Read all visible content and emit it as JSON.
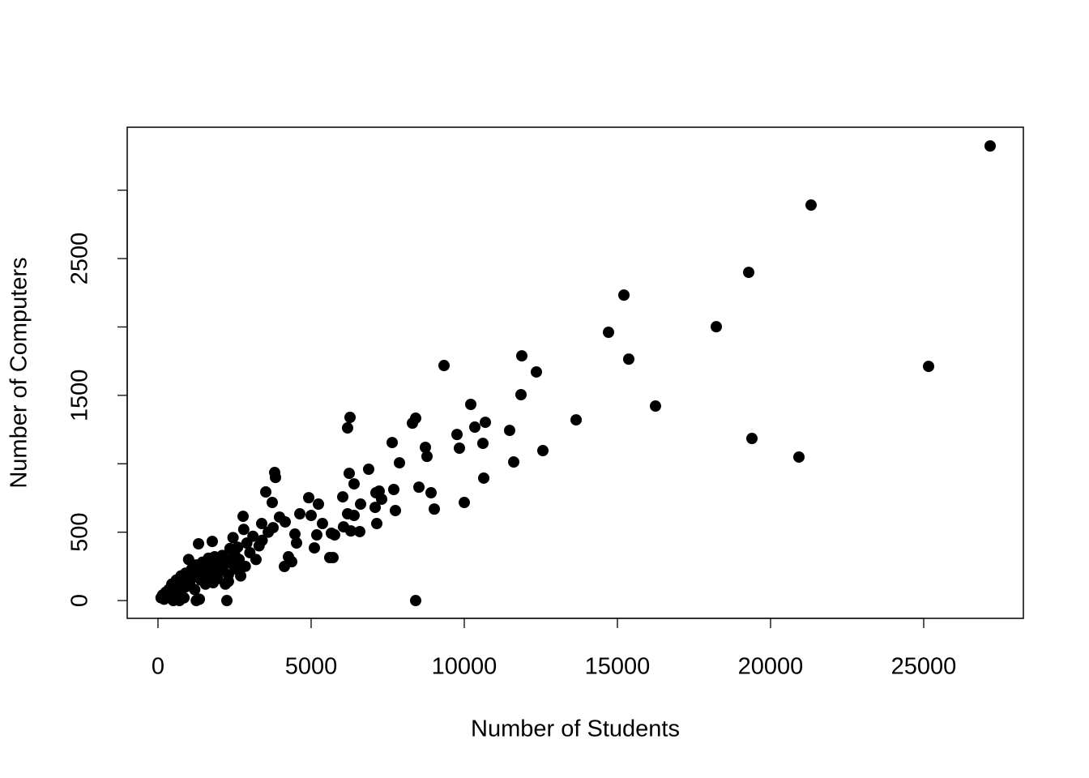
{
  "chart_data": {
    "type": "scatter",
    "x_label": "Number of Students",
    "y_label": "Number of Computers",
    "color": "#000000",
    "xlim": [
      -1005,
      28254
    ],
    "ylim": [
      -130,
      3460
    ],
    "xticks": [
      0,
      5000,
      10000,
      15000,
      20000,
      25000
    ],
    "yticks": [
      0,
      500,
      {
        "value": 1000,
        "label": null
      },
      1500,
      {
        "value": 2000,
        "label": null
      },
      2500,
      {
        "value": 3000,
        "label": null
      }
    ],
    "x": [
      27169,
      21323,
      19286,
      15212,
      14709,
      18228,
      15370,
      25159,
      16243,
      19392,
      20926,
      13651,
      9339,
      11878,
      12354,
      11852,
      10212,
      10688,
      10344,
      11481,
      10608,
      9762,
      9841,
      12566,
      11614,
      10635,
      10000,
      8413,
      8307,
      8730,
      8783,
      7884,
      7646,
      7698,
      7751,
      8519,
      8915,
      9021,
      8413,
      6270,
      6190,
      6243,
      6878,
      6402,
      7116,
      7222,
      7302,
      7090,
      7143,
      6614,
      6032,
      6190,
      6402,
      6058,
      6296,
      6587,
      3810,
      3836,
      3519,
      3730,
      3968,
      4153,
      3386,
      3757,
      4921,
      5238,
      5000,
      4630,
      5370,
      5185,
      5106,
      5661,
      5767,
      5608,
      5714,
      4259,
      4127,
      4365,
      4524,
      4471,
      2778,
      1772,
      1323,
      2249,
      100,
      150,
      200,
      250,
      300,
      350,
      400,
      450,
      500,
      550,
      600,
      650,
      700,
      750,
      800,
      850,
      900,
      950,
      1000,
      1050,
      1100,
      1150,
      1200,
      1250,
      1300,
      1350,
      1400,
      1450,
      1500,
      1550,
      1600,
      1650,
      1700,
      1750,
      1800,
      1850,
      1900,
      1950,
      2000,
      2050,
      2100,
      2150,
      2200,
      2250,
      2300,
      2350,
      2400,
      2450,
      2500,
      2550,
      2600,
      2650,
      2700,
      2800,
      2850,
      2900,
      3000,
      3100,
      3200,
      3300,
      3400,
      3600,
      1250,
      700,
      500,
      900,
      1800,
      2300,
      1600
    ],
    "y": [
      3323,
      2891,
      2399,
      2233,
      1961,
      2002,
      1765,
      1712,
      1422,
      1185,
      1049,
      1321,
      1718,
      1789,
      1671,
      1505,
      1434,
      1303,
      1268,
      1244,
      1149,
      1214,
      1114,
      1096,
      1013,
      895,
      717,
      1333,
      1297,
      1120,
      1054,
      1007,
      1155,
      812,
      658,
      829,
      788,
      669,
      0,
      1339,
      1262,
      930,
      960,
      853,
      788,
      800,
      741,
      681,
      563,
      705,
      758,
      634,
      622,
      539,
      509,
      504,
      936,
      900,
      794,
      717,
      610,
      575,
      563,
      533,
      752,
      705,
      622,
      634,
      563,
      480,
      385,
      492,
      480,
      314,
      314,
      320,
      249,
      284,
      421,
      486,
      616,
      432,
      415,
      0,
      20,
      40,
      10,
      60,
      30,
      80,
      50,
      120,
      90,
      40,
      150,
      100,
      60,
      180,
      130,
      20,
      200,
      160,
      300,
      110,
      230,
      170,
      80,
      260,
      200,
      10,
      150,
      280,
      210,
      120,
      240,
      310,
      180,
      270,
      200,
      320,
      250,
      160,
      290,
      220,
      330,
      260,
      120,
      300,
      190,
      380,
      270,
      460,
      340,
      230,
      390,
      300,
      180,
      520,
      250,
      420,
      350,
      470,
      300,
      400,
      440,
      500,
      0,
      0,
      0,
      100,
      130,
      140,
      190
    ]
  }
}
